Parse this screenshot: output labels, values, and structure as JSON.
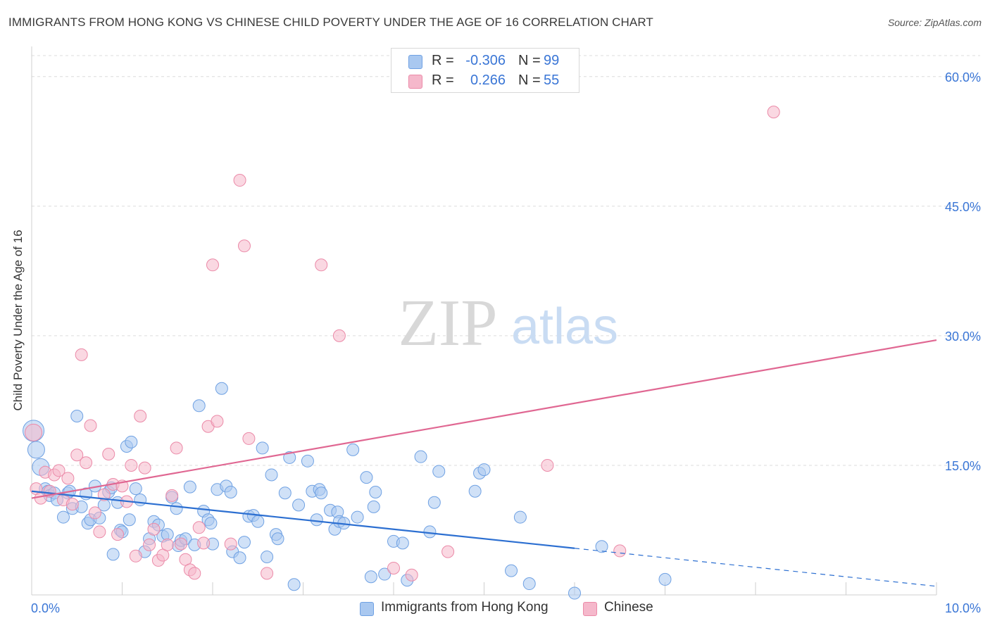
{
  "title": "IMMIGRANTS FROM HONG KONG VS CHINESE CHILD POVERTY UNDER THE AGE OF 16 CORRELATION CHART",
  "source": "Source: ZipAtlas.com",
  "watermark": {
    "zip": "ZIP",
    "atlas": "atlas"
  },
  "legend": {
    "rows": [
      {
        "r_label": "R =",
        "r_value": "-0.306",
        "n_label": "N =",
        "n_value": "99",
        "color": "#a9c8f0"
      },
      {
        "r_label": "R =",
        "r_value": "0.266",
        "n_label": "N =",
        "n_value": "55",
        "color": "#f5b8cb"
      }
    ]
  },
  "bottom_legend": {
    "items": [
      {
        "label": "Immigrants from Hong Kong",
        "color": "#a9c8f0"
      },
      {
        "label": "Chinese",
        "color": "#f5b8cb"
      }
    ]
  },
  "chart_data": {
    "type": "scatter",
    "title": "IMMIGRANTS FROM HONG KONG VS CHINESE CHILD POVERTY UNDER THE AGE OF 16 CORRELATION CHART",
    "xlabel": "",
    "ylabel": "Child Poverty Under the Age of 16",
    "xlim": [
      0,
      10
    ],
    "ylim": [
      0,
      63
    ],
    "x_tick_labels": [
      {
        "value": 0,
        "label": "0.0%"
      },
      {
        "value": 10,
        "label": "10.0%"
      }
    ],
    "y_tick_labels": [
      {
        "value": 15,
        "label": "15.0%"
      },
      {
        "value": 30,
        "label": "30.0%"
      },
      {
        "value": 45,
        "label": "45.0%"
      },
      {
        "value": 60,
        "label": "60.0%"
      }
    ],
    "grid": true,
    "legend_position": "top-center",
    "series": [
      {
        "name": "Immigrants from Hong Kong",
        "color": "#6fa1e3",
        "fill": "#a9c8f0",
        "trend": {
          "x0": 0,
          "y0": 12.0,
          "x1": 6.0,
          "y1": 5.4,
          "dash_x1": 10.0,
          "dash_y1": 1.0
        },
        "points": [
          [
            0.02,
            19.0,
            3
          ],
          [
            0.05,
            16.8,
            2
          ],
          [
            0.1,
            14.8,
            2
          ],
          [
            0.15,
            12.3,
            1
          ],
          [
            0.18,
            12.0,
            1
          ],
          [
            0.2,
            11.5,
            1
          ],
          [
            0.25,
            11.8,
            1
          ],
          [
            0.28,
            11.0,
            1
          ],
          [
            0.35,
            9.0,
            1
          ],
          [
            0.4,
            11.8,
            1
          ],
          [
            0.42,
            12.0,
            1
          ],
          [
            0.45,
            10.0,
            1
          ],
          [
            0.5,
            20.7,
            1
          ],
          [
            0.55,
            10.2,
            1
          ],
          [
            0.6,
            11.7,
            1
          ],
          [
            0.62,
            8.3,
            1
          ],
          [
            0.65,
            8.7,
            1
          ],
          [
            0.7,
            12.6,
            1
          ],
          [
            0.75,
            8.9,
            1
          ],
          [
            0.8,
            10.4,
            1
          ],
          [
            0.85,
            11.9,
            1
          ],
          [
            0.88,
            12.4,
            1
          ],
          [
            0.9,
            4.7,
            1
          ],
          [
            0.95,
            10.7,
            1
          ],
          [
            0.98,
            7.5,
            1
          ],
          [
            1.0,
            7.3,
            1
          ],
          [
            1.05,
            17.2,
            1
          ],
          [
            1.08,
            8.7,
            1
          ],
          [
            1.1,
            17.7,
            1
          ],
          [
            1.15,
            12.3,
            1
          ],
          [
            1.2,
            11.0,
            1
          ],
          [
            1.25,
            5.0,
            1
          ],
          [
            1.3,
            6.5,
            1
          ],
          [
            1.35,
            8.5,
            1
          ],
          [
            1.4,
            8.1,
            1
          ],
          [
            1.45,
            6.8,
            1
          ],
          [
            1.5,
            7.0,
            1
          ],
          [
            1.55,
            11.3,
            1
          ],
          [
            1.6,
            10.0,
            1
          ],
          [
            1.62,
            5.7,
            1
          ],
          [
            1.65,
            6.3,
            1
          ],
          [
            1.7,
            6.5,
            1
          ],
          [
            1.75,
            12.5,
            1
          ],
          [
            1.8,
            5.8,
            1
          ],
          [
            1.85,
            21.9,
            1
          ],
          [
            1.9,
            9.7,
            1
          ],
          [
            1.95,
            8.7,
            1
          ],
          [
            1.98,
            8.3,
            1
          ],
          [
            2.0,
            5.9,
            1
          ],
          [
            2.05,
            12.2,
            1
          ],
          [
            2.1,
            23.9,
            1
          ],
          [
            2.15,
            12.6,
            1
          ],
          [
            2.2,
            11.9,
            1
          ],
          [
            2.22,
            5.0,
            1
          ],
          [
            2.3,
            4.3,
            1
          ],
          [
            2.35,
            6.1,
            1
          ],
          [
            2.4,
            9.1,
            1
          ],
          [
            2.45,
            9.2,
            1
          ],
          [
            2.5,
            8.5,
            1
          ],
          [
            2.55,
            17.0,
            1
          ],
          [
            2.6,
            4.4,
            1
          ],
          [
            2.65,
            13.9,
            1
          ],
          [
            2.7,
            7.0,
            1
          ],
          [
            2.72,
            6.5,
            1
          ],
          [
            2.8,
            11.8,
            1
          ],
          [
            2.85,
            15.9,
            1
          ],
          [
            2.9,
            1.2,
            1
          ],
          [
            2.95,
            10.4,
            1
          ],
          [
            3.05,
            15.5,
            1
          ],
          [
            3.1,
            12.0,
            1
          ],
          [
            3.15,
            8.7,
            1
          ],
          [
            3.18,
            12.2,
            1
          ],
          [
            3.2,
            11.8,
            1
          ],
          [
            3.3,
            9.8,
            1
          ],
          [
            3.35,
            7.6,
            1
          ],
          [
            3.38,
            9.6,
            1
          ],
          [
            3.4,
            8.5,
            1
          ],
          [
            3.45,
            8.3,
            1
          ],
          [
            3.55,
            16.8,
            1
          ],
          [
            3.6,
            9.0,
            1
          ],
          [
            3.7,
            13.6,
            1
          ],
          [
            3.75,
            2.1,
            1
          ],
          [
            3.78,
            10.2,
            1
          ],
          [
            3.8,
            11.9,
            1
          ],
          [
            3.9,
            2.4,
            1
          ],
          [
            4.0,
            6.2,
            1
          ],
          [
            4.1,
            6.0,
            1
          ],
          [
            4.15,
            1.7,
            1
          ],
          [
            4.3,
            16.0,
            1
          ],
          [
            4.4,
            7.3,
            1
          ],
          [
            4.45,
            10.7,
            1
          ],
          [
            4.5,
            14.3,
            1
          ],
          [
            4.9,
            12.0,
            1
          ],
          [
            4.95,
            14.1,
            1
          ],
          [
            5.0,
            14.5,
            1
          ],
          [
            5.3,
            2.8,
            1
          ],
          [
            5.4,
            9.0,
            1
          ],
          [
            5.5,
            1.3,
            1
          ],
          [
            6.0,
            0.2,
            1
          ],
          [
            6.3,
            5.6,
            1
          ],
          [
            7.0,
            1.8,
            1
          ]
        ]
      },
      {
        "name": "Chinese",
        "color": "#eb8aa8",
        "fill": "#f5b8cb",
        "trend": {
          "x0": 0,
          "y0": 11.2,
          "x1": 10.0,
          "y1": 29.5
        },
        "points": [
          [
            0.02,
            18.8,
            2
          ],
          [
            0.05,
            12.3,
            1
          ],
          [
            0.1,
            11.2,
            1
          ],
          [
            0.15,
            14.2,
            1
          ],
          [
            0.2,
            12.0,
            1
          ],
          [
            0.25,
            13.9,
            1
          ],
          [
            0.3,
            14.4,
            1
          ],
          [
            0.35,
            11.0,
            1
          ],
          [
            0.4,
            13.5,
            1
          ],
          [
            0.45,
            10.5,
            1
          ],
          [
            0.5,
            16.2,
            1
          ],
          [
            0.55,
            27.8,
            1
          ],
          [
            0.6,
            15.3,
            1
          ],
          [
            0.65,
            19.6,
            1
          ],
          [
            0.7,
            9.5,
            1
          ],
          [
            0.75,
            7.3,
            1
          ],
          [
            0.8,
            11.6,
            1
          ],
          [
            0.85,
            16.3,
            1
          ],
          [
            0.9,
            12.8,
            1
          ],
          [
            0.95,
            7.0,
            1
          ],
          [
            1.0,
            12.6,
            1
          ],
          [
            1.05,
            10.8,
            1
          ],
          [
            1.1,
            15.0,
            1
          ],
          [
            1.15,
            4.5,
            1
          ],
          [
            1.2,
            20.7,
            1
          ],
          [
            1.25,
            14.7,
            1
          ],
          [
            1.3,
            5.8,
            1
          ],
          [
            1.35,
            7.6,
            1
          ],
          [
            1.4,
            4.0,
            1
          ],
          [
            1.45,
            4.6,
            1
          ],
          [
            1.5,
            5.8,
            1
          ],
          [
            1.55,
            11.5,
            1
          ],
          [
            1.6,
            17.0,
            1
          ],
          [
            1.65,
            5.9,
            1
          ],
          [
            1.7,
            4.1,
            1
          ],
          [
            1.75,
            2.9,
            1
          ],
          [
            1.8,
            2.5,
            1
          ],
          [
            1.85,
            7.8,
            1
          ],
          [
            1.9,
            6.0,
            1
          ],
          [
            1.95,
            19.5,
            1
          ],
          [
            2.0,
            38.2,
            1
          ],
          [
            2.05,
            20.1,
            1
          ],
          [
            2.2,
            5.9,
            1
          ],
          [
            2.3,
            48.0,
            1
          ],
          [
            2.35,
            40.4,
            1
          ],
          [
            2.4,
            18.1,
            1
          ],
          [
            2.6,
            2.5,
            1
          ],
          [
            3.2,
            38.2,
            1
          ],
          [
            3.4,
            30.0,
            1
          ],
          [
            4.0,
            3.1,
            1
          ],
          [
            4.2,
            2.3,
            1
          ],
          [
            4.6,
            5.0,
            1
          ],
          [
            5.7,
            15.0,
            1
          ],
          [
            6.5,
            5.1,
            1
          ],
          [
            8.2,
            55.9,
            1
          ]
        ]
      }
    ]
  }
}
